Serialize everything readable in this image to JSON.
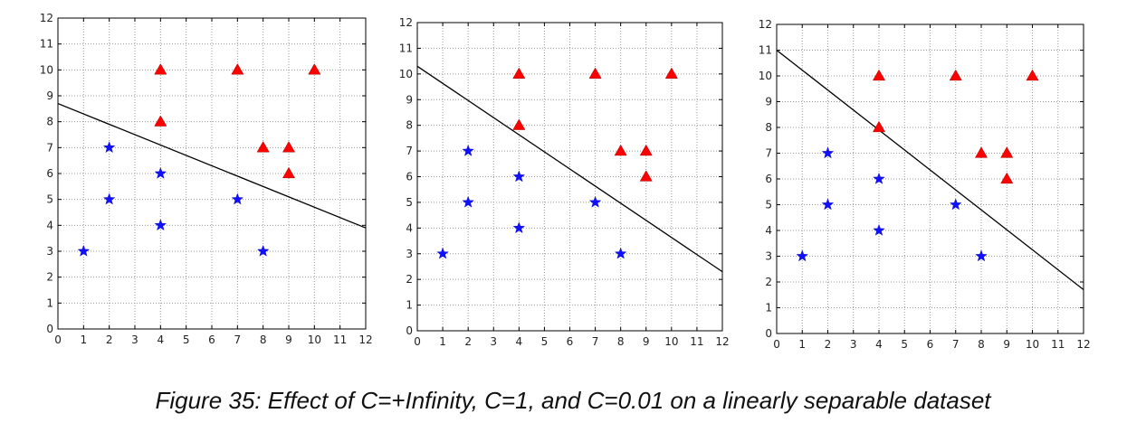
{
  "caption": "Figure 35: Effect of C=+Infinity, C=1, and C=0.01 on a linearly separable dataset",
  "colors": {
    "triangle": "#ff0000",
    "star": "#1010ff",
    "line": "#000000",
    "grid": "#999999",
    "frame": "#000000"
  },
  "chart_data": [
    {
      "type": "scatter",
      "xlim": [
        0,
        12
      ],
      "ylim": [
        0,
        12
      ],
      "xticks": [
        0,
        1,
        2,
        3,
        4,
        5,
        6,
        7,
        8,
        9,
        10,
        11,
        12
      ],
      "yticks": [
        0,
        1,
        2,
        3,
        4,
        5,
        6,
        7,
        8,
        9,
        10,
        11,
        12
      ],
      "grid": true,
      "series": [
        {
          "marker": "triangle",
          "color": "red",
          "points": [
            [
              4,
              10
            ],
            [
              7,
              10
            ],
            [
              10,
              10
            ],
            [
              4,
              8
            ],
            [
              8,
              7
            ],
            [
              9,
              7
            ],
            [
              9,
              6
            ]
          ]
        },
        {
          "marker": "star",
          "color": "blue",
          "points": [
            [
              2,
              7
            ],
            [
              4,
              6
            ],
            [
              2,
              5
            ],
            [
              7,
              5
            ],
            [
              4,
              4
            ],
            [
              1,
              3
            ],
            [
              8,
              3
            ]
          ]
        }
      ],
      "line": [
        [
          0,
          8.7
        ],
        [
          12,
          3.9
        ]
      ]
    },
    {
      "type": "scatter",
      "xlim": [
        0,
        12
      ],
      "ylim": [
        0,
        12
      ],
      "xticks": [
        0,
        1,
        2,
        3,
        4,
        5,
        6,
        7,
        8,
        9,
        10,
        11,
        12
      ],
      "yticks": [
        0,
        1,
        2,
        3,
        4,
        5,
        6,
        7,
        8,
        9,
        10,
        11,
        12
      ],
      "grid": true,
      "series": [
        {
          "marker": "triangle",
          "color": "red",
          "points": [
            [
              4,
              10
            ],
            [
              7,
              10
            ],
            [
              10,
              10
            ],
            [
              4,
              8
            ],
            [
              8,
              7
            ],
            [
              9,
              7
            ],
            [
              9,
              6
            ]
          ]
        },
        {
          "marker": "star",
          "color": "blue",
          "points": [
            [
              2,
              7
            ],
            [
              4,
              6
            ],
            [
              2,
              5
            ],
            [
              7,
              5
            ],
            [
              4,
              4
            ],
            [
              1,
              3
            ],
            [
              8,
              3
            ]
          ]
        }
      ],
      "line": [
        [
          0,
          10.3
        ],
        [
          12,
          2.3
        ]
      ]
    },
    {
      "type": "scatter",
      "xlim": [
        0,
        12
      ],
      "ylim": [
        0,
        12
      ],
      "xticks": [
        0,
        1,
        2,
        3,
        4,
        5,
        6,
        7,
        8,
        9,
        10,
        11,
        12
      ],
      "yticks": [
        0,
        1,
        2,
        3,
        4,
        5,
        6,
        7,
        8,
        9,
        10,
        11,
        12
      ],
      "grid": true,
      "series": [
        {
          "marker": "triangle",
          "color": "red",
          "points": [
            [
              4,
              10
            ],
            [
              7,
              10
            ],
            [
              10,
              10
            ],
            [
              4,
              8
            ],
            [
              8,
              7
            ],
            [
              9,
              7
            ],
            [
              9,
              6
            ]
          ]
        },
        {
          "marker": "star",
          "color": "blue",
          "points": [
            [
              2,
              7
            ],
            [
              4,
              6
            ],
            [
              2,
              5
            ],
            [
              7,
              5
            ],
            [
              4,
              4
            ],
            [
              1,
              3
            ],
            [
              8,
              3
            ]
          ]
        }
      ],
      "line": [
        [
          0,
          11
        ],
        [
          12,
          1.7
        ]
      ]
    }
  ]
}
